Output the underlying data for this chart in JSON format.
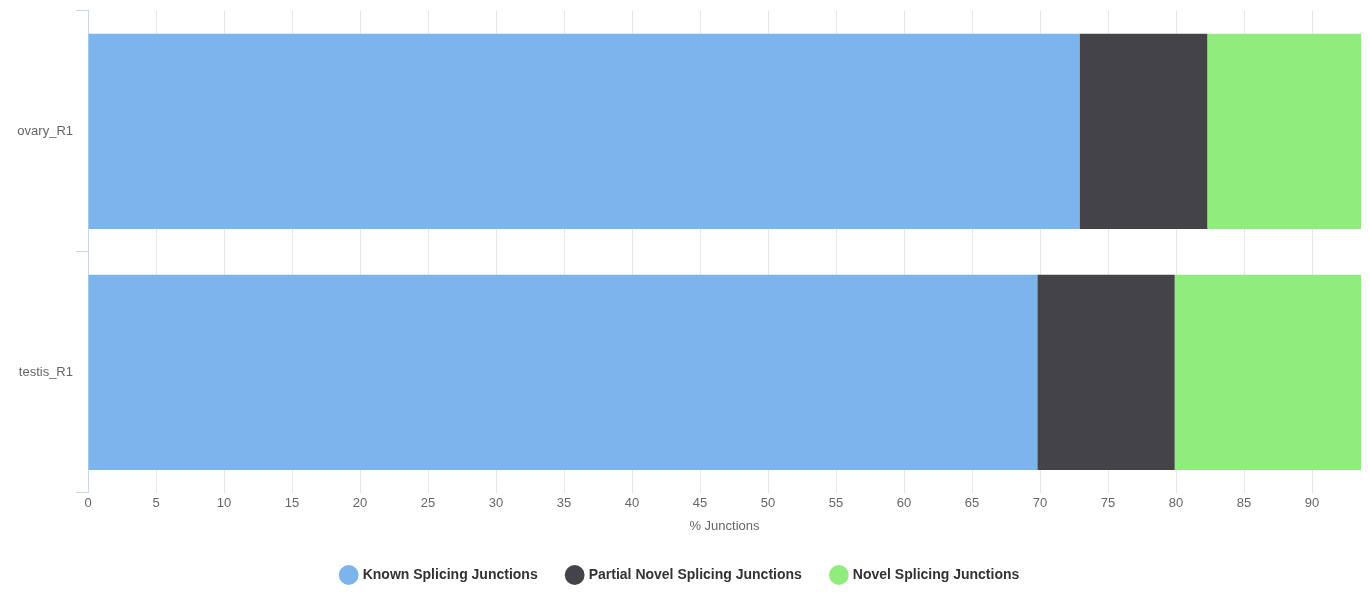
{
  "chart_data": {
    "type": "bar",
    "orientation": "horizontal",
    "stacked": true,
    "xlabel": "% Junctions",
    "categories": [
      "ovary_R1",
      "testis_R1"
    ],
    "series": [
      {
        "name": "Known Splicing Junctions",
        "color": "#7cb5ec",
        "values": [
          72.9,
          69.8
        ]
      },
      {
        "name": "Partial Novel Splicing Junctions",
        "color": "#434348",
        "values": [
          9.4,
          10.1
        ]
      },
      {
        "name": "Novel Splicing Junctions",
        "color": "#90ed7d",
        "values": [
          11.3,
          13.7
        ]
      }
    ],
    "xlim": [
      0,
      93.6
    ],
    "xticks": [
      0,
      5,
      10,
      15,
      20,
      25,
      30,
      35,
      40,
      45,
      50,
      55,
      60,
      65,
      70,
      75,
      80,
      85,
      90
    ],
    "grid": "x",
    "legend": "bottom"
  }
}
